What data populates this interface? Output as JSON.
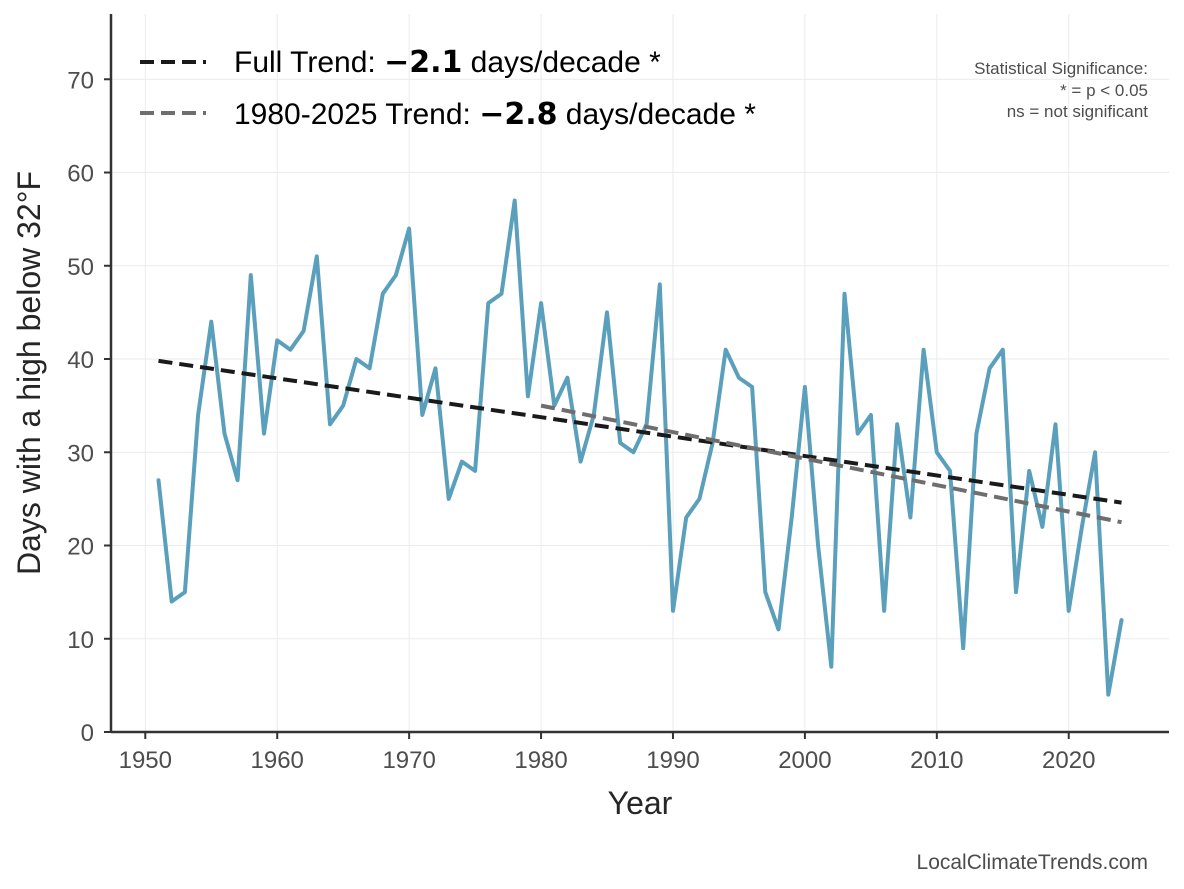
{
  "chart_data": {
    "type": "line",
    "xlabel": "Year",
    "ylabel": "Days with a high below 32°F",
    "xlim": [
      1947.4,
      2027.6
    ],
    "ylim": [
      0,
      77
    ],
    "x_ticks": [
      1950,
      1960,
      1970,
      1980,
      1990,
      2000,
      2010,
      2020
    ],
    "y_ticks": [
      0,
      10,
      20,
      30,
      40,
      50,
      60,
      70
    ],
    "grid": true,
    "legend_position": "top-left",
    "series": [
      {
        "color": "#5a9fbb",
        "x": [
          1951,
          1952,
          1953,
          1954,
          1955,
          1956,
          1957,
          1958,
          1959,
          1960,
          1961,
          1962,
          1963,
          1964,
          1965,
          1966,
          1967,
          1968,
          1969,
          1970,
          1971,
          1972,
          1973,
          1974,
          1975,
          1976,
          1977,
          1978,
          1979,
          1980,
          1981,
          1982,
          1983,
          1984,
          1985,
          1986,
          1987,
          1988,
          1989,
          1990,
          1991,
          1992,
          1993,
          1994,
          1995,
          1996,
          1997,
          1998,
          1999,
          2000,
          2001,
          2002,
          2003,
          2004,
          2005,
          2006,
          2007,
          2008,
          2009,
          2010,
          2011,
          2012,
          2013,
          2014,
          2015,
          2016,
          2017,
          2018,
          2019,
          2020,
          2021,
          2022,
          2023,
          2024
        ],
        "values": [
          27,
          14,
          15,
          34,
          44,
          32,
          27,
          49,
          32,
          42,
          41,
          43,
          51,
          33,
          35,
          40,
          39,
          47,
          49,
          54,
          34,
          39,
          25,
          29,
          28,
          46,
          47,
          57,
          36,
          46,
          35,
          38,
          29,
          34,
          45,
          31,
          30,
          33,
          48,
          13,
          23,
          25,
          31,
          41,
          38,
          37,
          15,
          11,
          23,
          37,
          20,
          7,
          47,
          32,
          34,
          13,
          33,
          23,
          41,
          30,
          28,
          9,
          32,
          39,
          41,
          15,
          28,
          22,
          33,
          13,
          22,
          30,
          4,
          12
        ]
      }
    ],
    "trends": [
      {
        "name": "Full Trend",
        "x": [
          1951,
          2024
        ],
        "values": [
          39.8,
          24.6
        ],
        "color": "#1a1a1a"
      },
      {
        "name": "1980-2025 Trend",
        "x": [
          1980,
          2024
        ],
        "values": [
          35.0,
          22.5
        ],
        "color": "#6e6e6e"
      }
    ]
  },
  "legend": [
    {
      "prefix": "Full Trend: ",
      "value": "−2.1",
      "suffix": " days/decade *"
    },
    {
      "prefix": "1980-2025 Trend: ",
      "value": "−2.8",
      "suffix": " days/decade *"
    }
  ],
  "significance_note": {
    "title": "Statistical Significance:",
    "line1": "* = p < 0.05",
    "line2": "ns = not significant"
  },
  "credit": "LocalClimateTrends.com"
}
